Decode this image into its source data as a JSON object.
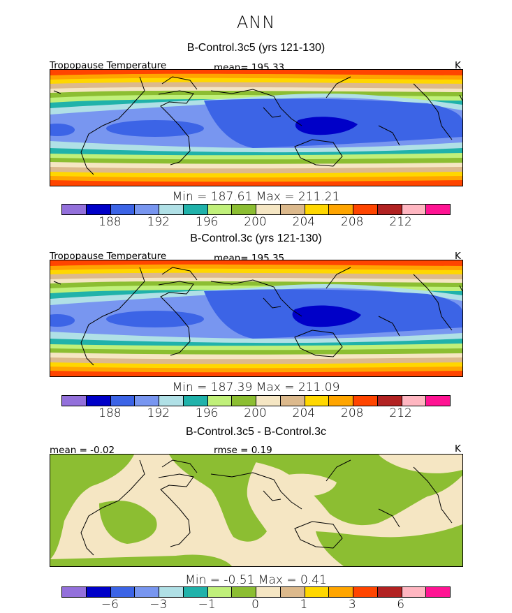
{
  "title": "ANN",
  "colormap": [
    "#9370db",
    "#0000c8",
    "#3c64e6",
    "#7896f0",
    "#b0e0e6",
    "#20b2aa",
    "#c0f07a",
    "#8cbe32",
    "#f5e6c3",
    "#dcb98c",
    "#ffd700",
    "#ffa500",
    "#ff4500",
    "#b22222",
    "#ffb6c1",
    "#ff1493"
  ],
  "panels": [
    {
      "title": "B-Control.3c5 (yrs 121-130)",
      "left_label": "Tropopause Temperature",
      "center_label": "mean= 195.33",
      "units": "K",
      "stats": "Min = 187.61 Max = 211.21",
      "ticks": [
        "188",
        "192",
        "196",
        "200",
        "204",
        "208",
        "212"
      ]
    },
    {
      "title": "B-Control.3c (yrs 121-130)",
      "left_label": "Tropopause Temperature",
      "center_label": "mean= 195.35",
      "units": "K",
      "stats": "Min = 187.39 Max = 211.09",
      "ticks": [
        "188",
        "192",
        "196",
        "200",
        "204",
        "208",
        "212"
      ]
    },
    {
      "title": "B-Control.3c5 - B-Control.3c",
      "left_label": "mean =  -0.02",
      "center_label": "rmse =   0.19",
      "units": "K",
      "stats": "Min =   -0.51 Max =    0.41",
      "ticks": [
        "-6",
        "-3",
        "-1",
        "0",
        "1",
        "3",
        "6"
      ]
    }
  ],
  "chart_data": [
    {
      "type": "heatmap",
      "title": "B-Control.3c5 (yrs 121-130)",
      "field": "Tropopause Temperature",
      "units": "K",
      "mean": 195.33,
      "min": 187.61,
      "max": 211.21,
      "colorbar_levels": [
        186,
        188,
        190,
        192,
        194,
        196,
        198,
        200,
        202,
        204,
        206,
        208,
        210,
        212,
        214
      ],
      "colorbar_tick_labels": [
        "188",
        "192",
        "196",
        "200",
        "204",
        "208",
        "212"
      ]
    },
    {
      "type": "heatmap",
      "title": "B-Control.3c (yrs 121-130)",
      "field": "Tropopause Temperature",
      "units": "K",
      "mean": 195.35,
      "min": 187.39,
      "max": 211.09,
      "colorbar_levels": [
        186,
        188,
        190,
        192,
        194,
        196,
        198,
        200,
        202,
        204,
        206,
        208,
        210,
        212,
        214
      ],
      "colorbar_tick_labels": [
        "188",
        "192",
        "196",
        "200",
        "204",
        "208",
        "212"
      ]
    },
    {
      "type": "heatmap",
      "title": "B-Control.3c5 - B-Control.3c",
      "units": "K",
      "mean": -0.02,
      "rmse": 0.19,
      "min": -0.51,
      "max": 0.41,
      "colorbar_levels": [
        -8,
        -6,
        -4,
        -3,
        -2,
        -1,
        -0.5,
        0,
        0.5,
        1,
        2,
        3,
        4,
        6,
        8
      ],
      "colorbar_tick_labels": [
        "-6",
        "-3",
        "-1",
        "0",
        "1",
        "3",
        "6"
      ]
    }
  ]
}
